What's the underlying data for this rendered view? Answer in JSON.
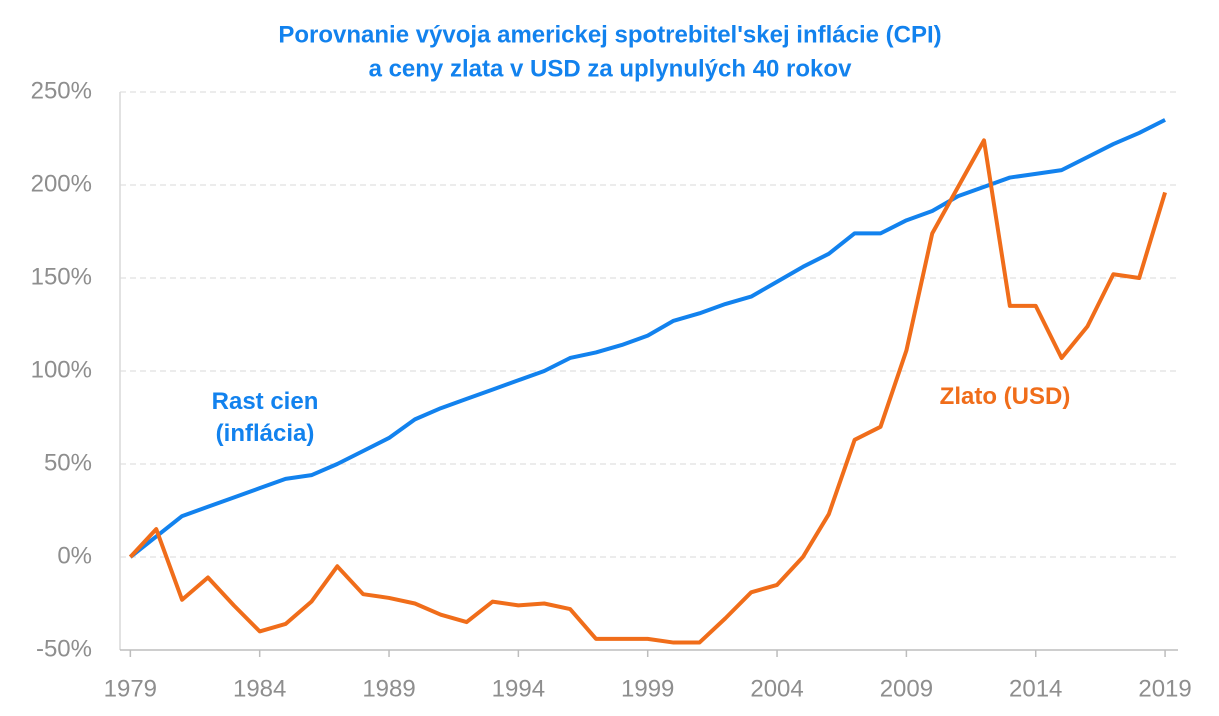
{
  "chart_data": {
    "type": "line",
    "title": [
      "Porovnanie vývoja americkej spotrebitel'skej inflácie (CPI)",
      "a ceny zlata v USD za uplynulých 40 rokov"
    ],
    "x": [
      1979,
      1980,
      1981,
      1982,
      1983,
      1984,
      1985,
      1986,
      1987,
      1988,
      1989,
      1990,
      1991,
      1992,
      1993,
      1994,
      1995,
      1996,
      1997,
      1998,
      1999,
      2000,
      2001,
      2002,
      2003,
      2004,
      2005,
      2006,
      2007,
      2008,
      2009,
      2010,
      2011,
      2012,
      2013,
      2014,
      2015,
      2016,
      2017,
      2018,
      2019
    ],
    "series": [
      {
        "name": "Rast cien (inflácia)",
        "color": "#1282ee",
        "values": [
          0,
          11,
          22,
          27,
          32,
          37,
          42,
          44,
          50,
          57,
          64,
          74,
          80,
          85,
          90,
          95,
          100,
          107,
          110,
          114,
          119,
          127,
          131,
          136,
          140,
          148,
          156,
          163,
          174,
          174,
          181,
          186,
          194,
          199,
          204,
          206,
          208,
          215,
          222,
          228,
          235
        ]
      },
      {
        "name": "Zlato (USD)",
        "color": "#f06d1a",
        "values": [
          0,
          15,
          -23,
          -11,
          -26,
          -40,
          -36,
          -24,
          -5,
          -20,
          -22,
          -25,
          -31,
          -35,
          -24,
          -26,
          -25,
          -28,
          -44,
          -44,
          -44,
          -46,
          -46,
          -33,
          -19,
          -15,
          0,
          23,
          63,
          70,
          111,
          174,
          199,
          224,
          135,
          135,
          107,
          124,
          152,
          150,
          196
        ]
      }
    ],
    "xlim": [
      1978.6,
      2019.5
    ],
    "xticks": [
      1979,
      1984,
      1989,
      1994,
      1999,
      2004,
      2009,
      2014,
      2019
    ],
    "ylim": [
      -50,
      250
    ],
    "yticks": [
      {
        "value": -50,
        "label": "-50%"
      },
      {
        "value": 0,
        "label": "0%"
      },
      {
        "value": 50,
        "label": "50%"
      },
      {
        "value": 100,
        "label": "100%"
      },
      {
        "value": 150,
        "label": "150%"
      },
      {
        "value": 200,
        "label": "200%"
      },
      {
        "value": 250,
        "label": "250%"
      }
    ],
    "grid": true
  }
}
